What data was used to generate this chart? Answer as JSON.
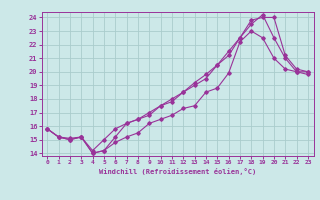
{
  "xlabel": "Windchill (Refroidissement éolien,°C)",
  "bg_color": "#cce8e8",
  "grid_color": "#aacccc",
  "line_color": "#993399",
  "xlim": [
    -0.5,
    23.5
  ],
  "ylim": [
    13.8,
    24.4
  ],
  "xticks": [
    0,
    1,
    2,
    3,
    4,
    5,
    6,
    7,
    8,
    9,
    10,
    11,
    12,
    13,
    14,
    15,
    16,
    17,
    18,
    19,
    20,
    21,
    22,
    23
  ],
  "yticks": [
    14,
    15,
    16,
    17,
    18,
    19,
    20,
    21,
    22,
    23,
    24
  ],
  "series": [
    {
      "x": [
        0,
        1,
        2,
        3,
        4,
        5,
        6,
        7,
        8,
        9,
        10,
        11,
        12,
        13,
        14,
        15,
        16,
        17,
        18,
        19,
        20,
        21,
        22,
        23
      ],
      "y": [
        15.8,
        15.2,
        15.0,
        15.2,
        14.0,
        14.2,
        14.8,
        15.2,
        15.5,
        16.2,
        16.5,
        16.8,
        17.3,
        17.5,
        18.5,
        18.8,
        19.9,
        22.2,
        23.0,
        22.5,
        21.0,
        20.2,
        20.0,
        20.0
      ]
    },
    {
      "x": [
        0,
        1,
        2,
        3,
        4,
        5,
        6,
        7,
        8,
        9,
        10,
        11,
        12,
        13,
        14,
        15,
        16,
        17,
        18,
        19,
        20,
        21,
        22,
        23
      ],
      "y": [
        15.8,
        15.2,
        15.1,
        15.2,
        14.2,
        15.0,
        15.8,
        16.2,
        16.5,
        17.0,
        17.5,
        17.8,
        18.5,
        19.0,
        19.5,
        20.5,
        21.5,
        22.5,
        23.8,
        24.0,
        24.0,
        21.2,
        20.2,
        20.0
      ]
    },
    {
      "x": [
        0,
        1,
        2,
        3,
        4,
        5,
        6,
        7,
        8,
        9,
        10,
        11,
        12,
        13,
        14,
        15,
        16,
        17,
        18,
        19,
        20,
        21,
        22,
        23
      ],
      "y": [
        15.8,
        15.2,
        15.0,
        15.2,
        14.0,
        14.2,
        15.2,
        16.2,
        16.5,
        16.8,
        17.5,
        18.0,
        18.5,
        19.2,
        19.8,
        20.5,
        21.2,
        22.5,
        23.5,
        24.2,
        22.5,
        21.0,
        20.0,
        19.8
      ]
    }
  ]
}
